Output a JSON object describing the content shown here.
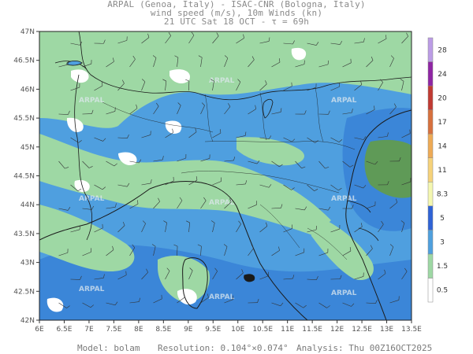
{
  "header": {
    "line1": "ARPAL (Genoa, Italy)  -  ISAC-CNR (Bologna, Italy)",
    "line2": "wind speed (m/s), 10m Winds (kn)",
    "line3": "21 UTC Sat 18 OCT  -  τ = 69h"
  },
  "axes": {
    "lat_labels": [
      "47N",
      "46.5N",
      "46N",
      "45.5N",
      "45N",
      "44.5N",
      "44N",
      "43.5N",
      "43N",
      "42.5N",
      "42N"
    ],
    "lon_labels": [
      "6E",
      "6.5E",
      "7E",
      "7.5E",
      "8E",
      "8.5E",
      "9E",
      "9.5E",
      "10E",
      "10.5E",
      "11E",
      "11.5E",
      "12E",
      "12.5E",
      "13E",
      "13.5E"
    ]
  },
  "colorbar": {
    "labels": [
      "0.5",
      "1.5",
      "3",
      "5",
      "8.3",
      "11",
      "14",
      "17",
      "20",
      "24",
      "28"
    ],
    "colors": [
      "#ffffff",
      "#9ed8a4",
      "#4fa0de",
      "#2f63d6",
      "#f4f7b0",
      "#f6d27a",
      "#eeaa55",
      "#d7703d",
      "#c13a32",
      "#8f25a4",
      "#bc9ce6"
    ]
  },
  "watermark": "ARPAL",
  "footer": {
    "model": "Model: bolam",
    "resolution": "Resolution: 0.104°×0.074°",
    "analysis": "Analysis: Thu 00Z16OCT2025"
  }
}
